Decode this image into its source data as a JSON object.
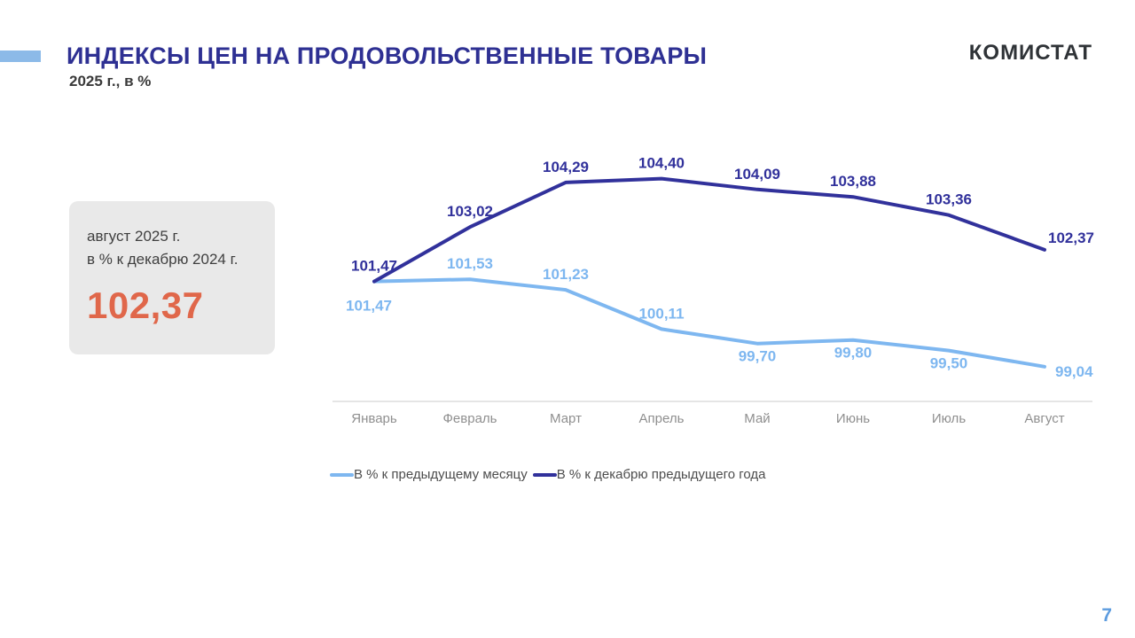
{
  "header": {
    "title": "ИНДЕКСЫ ЦЕН НА ПРОДОВОЛЬСТВЕННЫЕ ТОВАРЫ",
    "subtitle": "2025 г., в %",
    "logo_text": "КОМИСТАТ",
    "accent_color": "#8CBAE8",
    "title_color": "#2E3093"
  },
  "callout": {
    "line1": "август 2025 г.",
    "line2": "в % к декабрю 2024 г.",
    "value": "102,37",
    "value_color": "#E0674A",
    "background_color": "#E9E9E9"
  },
  "chart_data": {
    "type": "line",
    "title": "",
    "xlabel": "",
    "ylabel": "",
    "categories": [
      "Январь",
      "Февраль",
      "Март",
      "Апрель",
      "Май",
      "Июнь",
      "Июль",
      "Август"
    ],
    "series": [
      {
        "name": "В % к предыдущему месяцу",
        "color": "#7EB7F0",
        "values": [
          101.47,
          101.53,
          101.23,
          100.11,
          99.7,
          99.8,
          99.5,
          99.04
        ],
        "labels": [
          "101,47",
          "101,53",
          "101,23",
          "100,11",
          "99,70",
          "99,80",
          "99,50",
          "99,04"
        ],
        "label_sides": [
          "below-far",
          "above",
          "above",
          "above",
          "below",
          "below",
          "below",
          "right"
        ]
      },
      {
        "name": "В % к декабрю предыдущего года",
        "color": "#31319B",
        "values": [
          101.47,
          103.02,
          104.29,
          104.4,
          104.09,
          103.88,
          103.36,
          102.37
        ],
        "labels": [
          "101,47",
          "103,02",
          "104,29",
          "104,40",
          "104,09",
          "103,88",
          "103,36",
          "102,37"
        ],
        "label_sides": [
          "above",
          "above",
          "above",
          "above",
          "above",
          "above",
          "above",
          "right-above"
        ]
      }
    ],
    "ylim": [
      98.0,
      105.5
    ],
    "grid": false,
    "legend_position": "bottom",
    "axis_color": "#CBCBCB",
    "tick_label_color": "#8F8F8F"
  },
  "footer": {
    "page_number": "7"
  }
}
